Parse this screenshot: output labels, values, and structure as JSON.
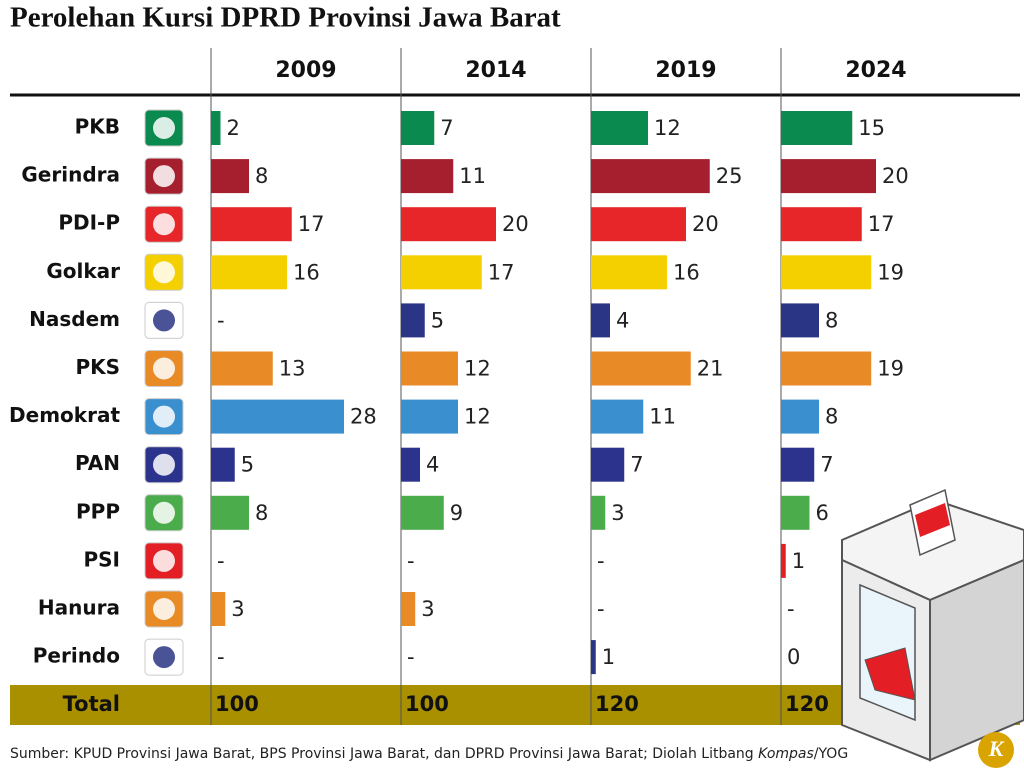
{
  "chart_data": {
    "type": "bar",
    "orientation": "horizontal",
    "title": "Perolehan Kursi DPRD Provinsi Jawa Barat",
    "categories": [
      "PKB",
      "Gerindra",
      "PDI-P",
      "Golkar",
      "Nasdem",
      "PKS",
      "Demokrat",
      "PAN",
      "PPP",
      "PSI",
      "Hanura",
      "Perindo"
    ],
    "colors": [
      "#0b8a4f",
      "#a51f2e",
      "#e62628",
      "#f5d000",
      "#2b3585",
      "#e88a25",
      "#3a90cf",
      "#2c338c",
      "#4bac4b",
      "#e31e24",
      "#e88a25",
      "#2b3585"
    ],
    "xlim": [
      0,
      40
    ],
    "total_label": "Total",
    "series": [
      {
        "name": "2009",
        "values": [
          2,
          8,
          17,
          16,
          null,
          13,
          28,
          5,
          8,
          null,
          3,
          null
        ],
        "value_labels": [
          "2",
          "8",
          "17",
          "16",
          "-",
          "13",
          "28",
          "5",
          "8",
          "-",
          "3",
          "-"
        ],
        "total": 100
      },
      {
        "name": "2014",
        "values": [
          7,
          11,
          20,
          17,
          5,
          12,
          12,
          4,
          9,
          null,
          3,
          null
        ],
        "value_labels": [
          "7",
          "11",
          "20",
          "17",
          "5",
          "12",
          "12",
          "4",
          "9",
          "-",
          "3",
          "-"
        ],
        "total": 100
      },
      {
        "name": "2019",
        "values": [
          12,
          25,
          20,
          16,
          4,
          21,
          11,
          7,
          3,
          null,
          null,
          1
        ],
        "value_labels": [
          "12",
          "25",
          "20",
          "16",
          "4",
          "21",
          "11",
          "7",
          "3",
          "-",
          "-",
          "1"
        ],
        "total": 120
      },
      {
        "name": "2024",
        "values": [
          15,
          20,
          17,
          19,
          8,
          19,
          8,
          7,
          6,
          1,
          null,
          0
        ],
        "value_labels": [
          "15",
          "20",
          "17",
          "19",
          "8",
          "19",
          "8",
          "7",
          "6",
          "1",
          "-",
          "0"
        ],
        "total": 120
      }
    ],
    "source_prefix": "Sumber: KPUD Provinsi Jawa Barat, BPS Provinsi Jawa Barat, dan DPRD Provinsi Jawa Barat; Diolah Litbang ",
    "source_italic": "Kompas",
    "source_suffix": "/YOG"
  }
}
